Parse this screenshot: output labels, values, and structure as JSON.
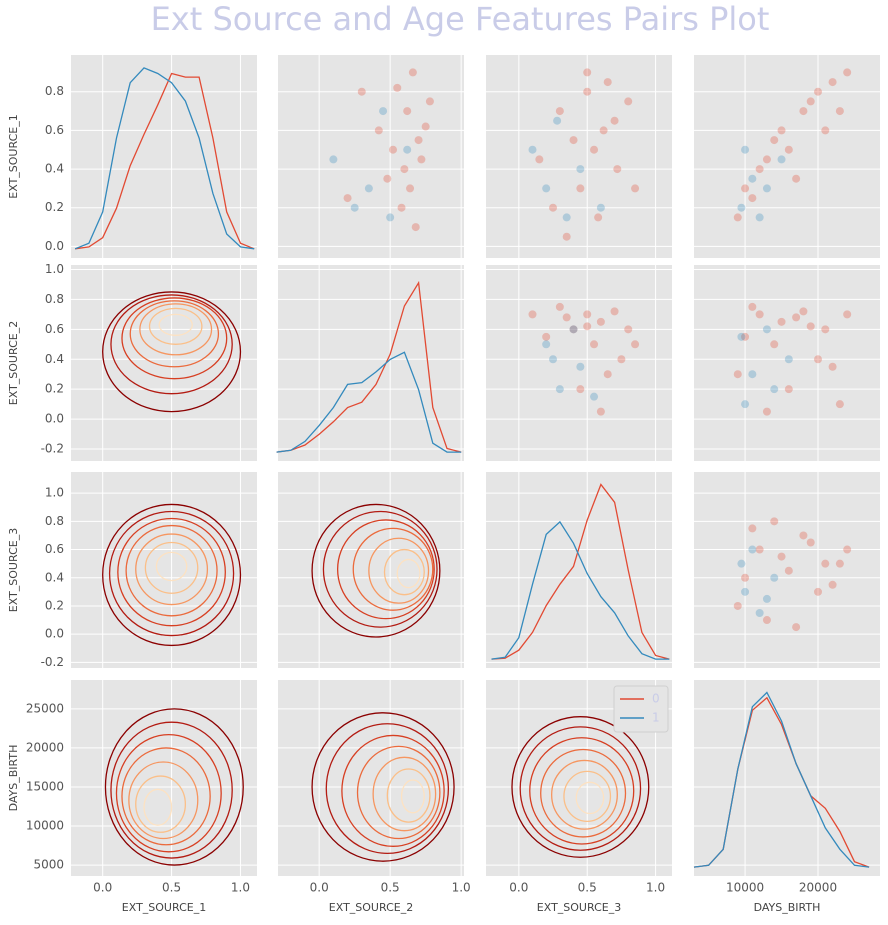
{
  "chart_data": {
    "type": "pairplot",
    "title": "Ext Source and Age Features Pairs Plot",
    "variables": [
      {
        "label": "EXT_SOURCE_1",
        "lim": [
          -0.23,
          1.12
        ],
        "ylim": [
          -0.06,
          0.99
        ],
        "xticks": [
          {
            "value": 0,
            "label": "0.0"
          },
          0.5,
          {
            "value": 1,
            "label": "1.0"
          }
        ],
        "yticks": [
          {
            "value": 0,
            "label": "0.0"
          },
          0.2,
          0.4,
          0.6,
          0.8
        ]
      },
      {
        "label": "EXT_SOURCE_2",
        "lim": [
          -0.29,
          1.02
        ],
        "ylim": [
          -0.28,
          1.03
        ],
        "xticks": [
          {
            "value": 0,
            "label": "0.0"
          },
          0.5,
          {
            "value": 1,
            "label": "1.0"
          }
        ],
        "yticks": [
          -0.2,
          {
            "value": 0,
            "label": "0.0"
          },
          0.2,
          0.4,
          0.6,
          0.8,
          {
            "value": 1,
            "label": "1.0"
          }
        ]
      },
      {
        "label": "EXT_SOURCE_3",
        "lim": [
          -0.24,
          1.12
        ],
        "ylim": [
          -0.24,
          1.15
        ],
        "xticks": [
          {
            "value": 0,
            "label": "0.0"
          },
          0.5,
          {
            "value": 1,
            "label": "1.0"
          }
        ],
        "yticks": [
          -0.2,
          {
            "value": 0,
            "label": "0.0"
          },
          0.2,
          0.4,
          0.6,
          0.8,
          {
            "value": 1,
            "label": "1.0"
          }
        ]
      },
      {
        "label": "DAYS_BIRTH",
        "lim": [
          3000,
          28500
        ],
        "ylim": [
          3600,
          28700
        ],
        "xticks": [
          10000,
          20000
        ],
        "yticks": [
          5000,
          10000,
          15000,
          20000,
          25000
        ]
      }
    ],
    "series": [
      {
        "name": "0",
        "color": "#e24a33"
      },
      {
        "name": "1",
        "color": "#348abd"
      }
    ],
    "legend": "upper right",
    "grid": true,
    "density_lim": [
      -0.05,
      1.05
    ],
    "contour_colors": [
      "#8b0000",
      "#b31b12",
      "#d73f22",
      "#eb6a3c",
      "#f69660",
      "#fbbf88",
      "#fde2c2"
    ],
    "panels": [
      [
        {
          "kind": "kde",
          "x": [
            -0.2,
            -0.1,
            0,
            0.1,
            0.2,
            0.3,
            0.4,
            0.5,
            0.6,
            0.7,
            0.8,
            0.9,
            1.0,
            1.1
          ],
          "series": [
            {
              "values": [
                0,
                0.01,
                0.06,
                0.22,
                0.45,
                0.62,
                0.78,
                0.95,
                0.93,
                0.93,
                0.6,
                0.2,
                0.03,
                0
              ]
            },
            {
              "values": [
                0,
                0.03,
                0.2,
                0.6,
                0.9,
                0.98,
                0.95,
                0.9,
                0.8,
                0.6,
                0.3,
                0.08,
                0.01,
                0
              ]
            }
          ]
        },
        {
          "kind": "scatter",
          "series": [
            {
              "x": [
                0.55,
                0.62,
                0.7,
                0.48,
                0.66,
                0.75,
                0.58,
                0.42,
                0.68,
                0.72,
                0.3,
                0.64,
                0.52,
                0.78,
                0.6,
                0.2
              ],
              "y": [
                0.82,
                0.7,
                0.55,
                0.35,
                0.9,
                0.62,
                0.2,
                0.6,
                0.1,
                0.45,
                0.8,
                0.3,
                0.5,
                0.75,
                0.4,
                0.25
              ]
            },
            {
              "x": [
                0.35,
                0.5,
                0.1,
                0.62,
                0.45,
                0.25
              ],
              "y": [
                0.3,
                0.15,
                0.45,
                0.5,
                0.7,
                0.2
              ]
            }
          ]
        },
        {
          "kind": "scatter",
          "series": [
            {
              "x": [
                0.5,
                0.62,
                0.3,
                0.72,
                0.45,
                0.55,
                0.8,
                0.25,
                0.65,
                0.4,
                0.58,
                0.7,
                0.15,
                0.85,
                0.5,
                0.35
              ],
              "y": [
                0.8,
                0.6,
                0.7,
                0.4,
                0.3,
                0.5,
                0.75,
                0.2,
                0.85,
                0.55,
                0.15,
                0.65,
                0.45,
                0.3,
                0.9,
                0.05
              ]
            },
            {
              "x": [
                0.2,
                0.35,
                0.1,
                0.45,
                0.28,
                0.6
              ],
              "y": [
                0.3,
                0.15,
                0.5,
                0.4,
                0.65,
                0.2
              ]
            }
          ]
        },
        {
          "kind": "scatter",
          "series": [
            {
              "x": [
                20000,
                22000,
                15000,
                12000,
                18000,
                10000,
                24000,
                16000,
                9000,
                21000,
                13000,
                19000,
                11000,
                23000,
                17000,
                14000
              ],
              "y": [
                0.8,
                0.85,
                0.6,
                0.4,
                0.7,
                0.3,
                0.9,
                0.5,
                0.15,
                0.6,
                0.45,
                0.75,
                0.25,
                0.7,
                0.35,
                0.55
              ]
            },
            {
              "x": [
                9500,
                11000,
                13000,
                10000,
                15000,
                12000
              ],
              "y": [
                0.2,
                0.35,
                0.3,
                0.5,
                0.45,
                0.15
              ]
            }
          ]
        }
      ],
      [
        {
          "kind": "contour",
          "levels": [
            [
              0.5,
              0.45,
              0.5,
              0.4
            ],
            [
              0.5,
              0.5,
              0.44,
              0.33
            ],
            [
              0.52,
              0.54,
              0.38,
              0.27
            ],
            [
              0.52,
              0.57,
              0.32,
              0.22
            ],
            [
              0.53,
              0.6,
              0.26,
              0.17
            ],
            [
              0.53,
              0.62,
              0.19,
              0.12
            ],
            [
              0.53,
              0.63,
              0.12,
              0.07
            ]
          ]
        },
        {
          "kind": "kde",
          "x": [
            -0.3,
            -0.2,
            -0.1,
            0,
            0.1,
            0.2,
            0.3,
            0.4,
            0.5,
            0.6,
            0.7,
            0.8,
            0.9,
            1.0
          ],
          "series": [
            {
              "values": [
                0,
                0.01,
                0.04,
                0.1,
                0.17,
                0.25,
                0.28,
                0.38,
                0.55,
                0.82,
                0.95,
                0.25,
                0.02,
                0
              ]
            },
            {
              "values": [
                0,
                0.01,
                0.06,
                0.15,
                0.25,
                0.38,
                0.39,
                0.45,
                0.52,
                0.56,
                0.35,
                0.05,
                0,
                0
              ]
            }
          ]
        },
        {
          "kind": "scatter",
          "series": [
            {
              "x": [
                0.5,
                0.6,
                0.7,
                0.4,
                0.55,
                0.3,
                0.8,
                0.65,
                0.2,
                0.45,
                0.75,
                0.35,
                0.6,
                0.1,
                0.85,
                0.5
              ],
              "y": [
                0.7,
                0.65,
                0.72,
                0.6,
                0.5,
                0.75,
                0.6,
                0.3,
                0.55,
                0.2,
                0.4,
                0.68,
                0.05,
                0.7,
                0.5,
                0.62
              ]
            },
            {
              "x": [
                0.3,
                0.2,
                0.45,
                0.4,
                0.55,
                0.25
              ],
              "y": [
                0.2,
                0.5,
                0.35,
                0.6,
                0.15,
                0.4
              ]
            }
          ]
        },
        {
          "kind": "scatter",
          "series": [
            {
              "x": [
                12000,
                15000,
                18000,
                21000,
                10000,
                14000,
                20000,
                24000,
                9000,
                16000,
                13000,
                19000,
                22000,
                11000,
                17000,
                23000
              ],
              "y": [
                0.7,
                0.65,
                0.72,
                0.6,
                0.55,
                0.5,
                0.4,
                0.7,
                0.3,
                0.2,
                0.05,
                0.62,
                0.35,
                0.75,
                0.68,
                0.1
              ]
            },
            {
              "x": [
                11000,
                9500,
                14000,
                13000,
                10000,
                16000
              ],
              "y": [
                0.3,
                0.55,
                0.2,
                0.6,
                0.1,
                0.4
              ]
            }
          ]
        }
      ],
      [
        {
          "kind": "contour",
          "levels": [
            [
              0.5,
              0.42,
              0.5,
              0.5
            ],
            [
              0.5,
              0.43,
              0.45,
              0.44
            ],
            [
              0.5,
              0.44,
              0.39,
              0.38
            ],
            [
              0.5,
              0.45,
              0.33,
              0.32
            ],
            [
              0.5,
              0.46,
              0.26,
              0.25
            ],
            [
              0.5,
              0.47,
              0.19,
              0.18
            ],
            [
              0.5,
              0.48,
              0.11,
              0.1
            ]
          ]
        },
        {
          "kind": "contour",
          "levels": [
            [
              0.4,
              0.45,
              0.45,
              0.47
            ],
            [
              0.43,
              0.46,
              0.4,
              0.41
            ],
            [
              0.47,
              0.46,
              0.34,
              0.35
            ],
            [
              0.52,
              0.46,
              0.28,
              0.29
            ],
            [
              0.56,
              0.45,
              0.21,
              0.23
            ],
            [
              0.6,
              0.44,
              0.14,
              0.16
            ],
            [
              0.63,
              0.43,
              0.08,
              0.1
            ]
          ]
        },
        {
          "kind": "kde",
          "x": [
            -0.2,
            -0.1,
            0,
            0.1,
            0.2,
            0.3,
            0.4,
            0.5,
            0.6,
            0.7,
            0.8,
            0.9,
            1.0,
            1.1
          ],
          "series": [
            {
              "values": [
                0,
                0.005,
                0.05,
                0.15,
                0.3,
                0.42,
                0.52,
                0.78,
                0.98,
                0.88,
                0.5,
                0.15,
                0.02,
                0
              ]
            },
            {
              "values": [
                0,
                0.01,
                0.12,
                0.42,
                0.7,
                0.77,
                0.65,
                0.48,
                0.35,
                0.26,
                0.13,
                0.03,
                0,
                0
              ]
            }
          ]
        },
        {
          "kind": "scatter",
          "series": [
            {
              "x": [
                12000,
                15000,
                18000,
                21000,
                10000,
                14000,
                20000,
                24000,
                9000,
                16000,
                13000,
                19000,
                22000,
                11000,
                17000,
                23000
              ],
              "y": [
                0.6,
                0.55,
                0.7,
                0.5,
                0.4,
                0.8,
                0.3,
                0.6,
                0.2,
                0.45,
                0.1,
                0.65,
                0.35,
                0.75,
                0.05,
                0.5
              ]
            },
            {
              "x": [
                10000,
                12000,
                9500,
                14000,
                11000,
                13000
              ],
              "y": [
                0.3,
                0.15,
                0.5,
                0.4,
                0.6,
                0.25
              ]
            }
          ]
        }
      ],
      [
        {
          "kind": "contour",
          "levels": [
            [
              0.52,
              15000,
              0.5,
              10000
            ],
            [
              0.5,
              14600,
              0.44,
              8700
            ],
            [
              0.48,
              14200,
              0.38,
              7500
            ],
            [
              0.46,
              13800,
              0.32,
              6200
            ],
            [
              0.44,
              13300,
              0.25,
              4900
            ],
            [
              0.42,
              12800,
              0.18,
              3600
            ],
            [
              0.4,
              12400,
              0.1,
              2300
            ]
          ]
        },
        {
          "kind": "contour",
          "levels": [
            [
              0.45,
              15000,
              0.5,
              9500
            ],
            [
              0.48,
              14800,
              0.43,
              8300
            ],
            [
              0.52,
              14500,
              0.36,
              7100
            ],
            [
              0.56,
              14300,
              0.29,
              5900
            ],
            [
              0.6,
              14100,
              0.22,
              4700
            ],
            [
              0.63,
              13900,
              0.15,
              3400
            ],
            [
              0.66,
              13800,
              0.08,
              2100
            ]
          ]
        },
        {
          "kind": "contour",
          "levels": [
            [
              0.45,
              15000,
              0.5,
              9000
            ],
            [
              0.45,
              14800,
              0.44,
              7900
            ],
            [
              0.46,
              14500,
              0.38,
              6800
            ],
            [
              0.47,
              14200,
              0.31,
              5600
            ],
            [
              0.48,
              14000,
              0.24,
              4400
            ],
            [
              0.5,
              13800,
              0.17,
              3200
            ],
            [
              0.52,
              13600,
              0.1,
              2000
            ]
          ]
        },
        {
          "kind": "kde",
          "x": [
            3000,
            5000,
            7000,
            9000,
            11000,
            13000,
            15000,
            17000,
            19000,
            21000,
            23000,
            25000,
            27000
          ],
          "series": [
            {
              "values": [
                0,
                0.01,
                0.1,
                0.55,
                0.88,
                0.95,
                0.8,
                0.58,
                0.4,
                0.33,
                0.2,
                0.03,
                0
              ]
            },
            {
              "values": [
                0,
                0.01,
                0.1,
                0.55,
                0.9,
                0.98,
                0.82,
                0.58,
                0.4,
                0.22,
                0.1,
                0.01,
                0
              ]
            }
          ]
        }
      ]
    ]
  }
}
